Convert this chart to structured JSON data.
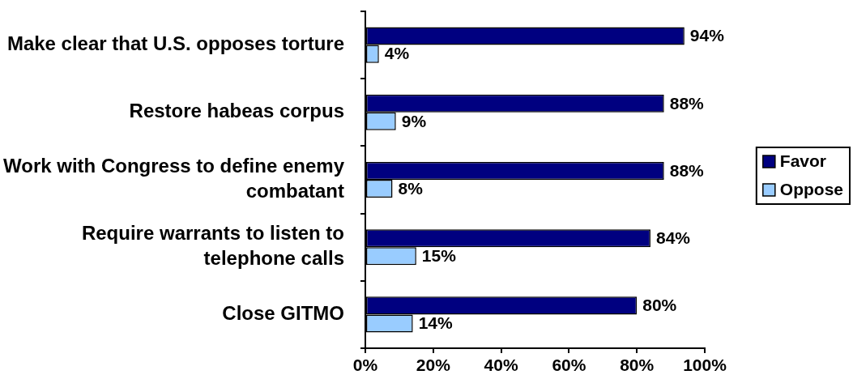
{
  "chart_data": {
    "type": "bar",
    "orientation": "horizontal",
    "categories": [
      "Make clear that U.S. opposes torture",
      "Restore habeas corpus",
      "Work with Congress to define enemy combatant",
      "Require warrants to listen to telephone calls",
      "Close GITMO"
    ],
    "series": [
      {
        "name": "Favor",
        "color": "#000080",
        "values": [
          94,
          88,
          88,
          84,
          80
        ],
        "value_labels": [
          "94%",
          "88%",
          "88%",
          "84%",
          "80%"
        ]
      },
      {
        "name": "Oppose",
        "color": "#99ccff",
        "values": [
          4,
          9,
          8,
          15,
          14
        ],
        "value_labels": [
          "4%",
          "9%",
          "8%",
          "15%",
          "14%"
        ]
      }
    ],
    "xlim": [
      0,
      100
    ],
    "xticks": [
      {
        "value": 0,
        "label": "0%"
      },
      {
        "value": 20,
        "label": "20%"
      },
      {
        "value": 40,
        "label": "40%"
      },
      {
        "value": 60,
        "label": "60%"
      },
      {
        "value": 80,
        "label": "80%"
      },
      {
        "value": 100,
        "label": "100%"
      }
    ],
    "legend": "right"
  }
}
